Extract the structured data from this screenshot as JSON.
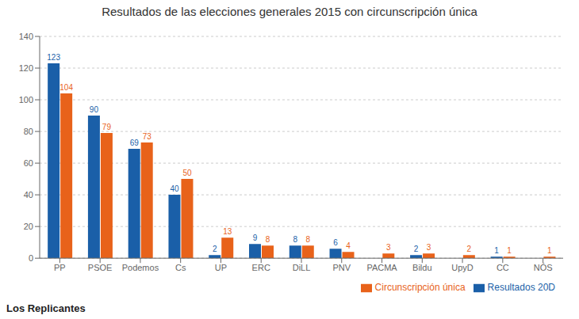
{
  "chart_data": {
    "type": "bar",
    "title": "Resultados de las elecciones generales 2015 con circunscripción única",
    "categories": [
      "PP",
      "PSOE",
      "Podemos",
      "Cs",
      "UP",
      "ERC",
      "DiLL",
      "PNV",
      "PACMA",
      "Bildu",
      "UpyD",
      "CC",
      "NÓS"
    ],
    "series": [
      {
        "name": "Resultados 20D",
        "color": "#1a5fa8",
        "values": [
          123,
          90,
          69,
          40,
          2,
          9,
          8,
          6,
          0,
          2,
          0,
          1,
          0
        ]
      },
      {
        "name": "Circunscripción única",
        "color": "#e8621a",
        "values": [
          104,
          79,
          73,
          50,
          13,
          8,
          8,
          4,
          3,
          3,
          2,
          1,
          1
        ]
      }
    ],
    "ylim": [
      0,
      140
    ],
    "yticks": [
      0,
      20,
      40,
      60,
      80,
      100,
      120,
      140
    ],
    "grid": true,
    "legend": "lower right",
    "data_labels": true,
    "annotations": [
      "Los Replicantes"
    ]
  }
}
